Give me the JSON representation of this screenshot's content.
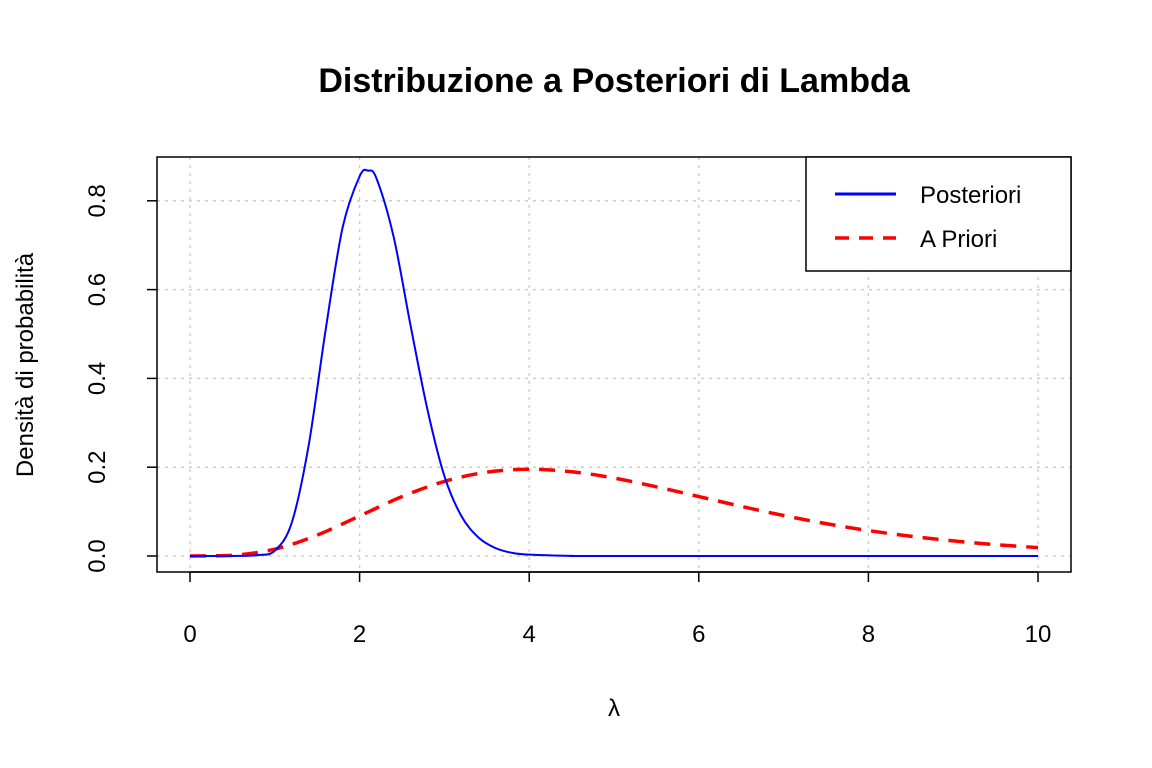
{
  "chart_data": {
    "type": "line",
    "title": "Distribuzione a Posteriori di Lambda",
    "xlabel": "λ",
    "ylabel": "Densità di probabilità",
    "xlim": [
      0,
      10
    ],
    "ylim": [
      0,
      0.85
    ],
    "xticks": [
      "0",
      "2",
      "4",
      "6",
      "8",
      "10"
    ],
    "yticks": [
      "0.0",
      "0.2",
      "0.4",
      "0.6",
      "0.8"
    ],
    "grid": true,
    "legend_position": "top-right",
    "series": [
      {
        "name": "Posteriori",
        "color": "#0000ff",
        "style": "solid",
        "x": [
          0.0,
          0.5,
          0.8,
          1.0,
          1.2,
          1.4,
          1.6,
          1.8,
          2.0,
          2.1,
          2.2,
          2.4,
          2.6,
          2.8,
          3.0,
          3.2,
          3.4,
          3.6,
          3.8,
          4.0,
          4.5,
          5.0,
          10.0
        ],
        "y": [
          0.0,
          0.0,
          0.002,
          0.012,
          0.075,
          0.25,
          0.51,
          0.74,
          0.855,
          0.868,
          0.85,
          0.72,
          0.52,
          0.33,
          0.18,
          0.09,
          0.042,
          0.018,
          0.007,
          0.003,
          0.0003,
          0.0,
          0.0
        ]
      },
      {
        "name": "A Priori",
        "color": "#ff0000",
        "style": "dashed",
        "x": [
          0.0,
          0.5,
          1.0,
          1.5,
          2.0,
          2.5,
          3.0,
          3.5,
          4.0,
          4.5,
          5.0,
          5.5,
          6.0,
          6.5,
          7.0,
          7.5,
          8.0,
          8.5,
          9.0,
          9.5,
          10.0
        ],
        "y": [
          0.0,
          0.0015,
          0.0153,
          0.0471,
          0.0902,
          0.1336,
          0.168,
          0.1888,
          0.1954,
          0.1898,
          0.1755,
          0.1558,
          0.1339,
          0.1118,
          0.0912,
          0.0729,
          0.0573,
          0.0444,
          0.034,
          0.0256,
          0.0189
        ]
      }
    ]
  }
}
